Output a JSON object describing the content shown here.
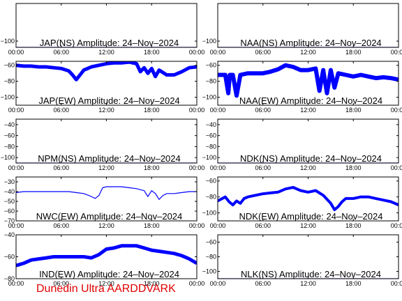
{
  "footer": "Dunedin Ultra AARDDVARK",
  "colors": {
    "trace": "#0000ff",
    "axes": "#000000",
    "footer": "#e00000"
  },
  "chart_data": [
    {
      "type": "line",
      "title": "JAP(NS) Amplitude: 24-Nov-2024",
      "yticks": [
        -100
      ],
      "ylim": [
        -110,
        -40
      ],
      "x_ticks": [
        "00:00",
        "06:00",
        "12:00",
        "18:00",
        "00:00"
      ],
      "series": [
        {
          "x": [
            0,
            1,
            2,
            3,
            4,
            5,
            6,
            7,
            8,
            9,
            10,
            11,
            12,
            13,
            14,
            15,
            16,
            17,
            18,
            19,
            20,
            21,
            22,
            23,
            24
          ],
          "values": [
            -110,
            -110,
            -110,
            -110,
            -110,
            -110,
            -110,
            -110,
            -110,
            -110,
            -110,
            -110,
            -110,
            -110,
            -110,
            -110,
            -110,
            -110,
            -110,
            -110,
            -110,
            -110,
            -110,
            -110,
            -110
          ]
        }
      ]
    },
    {
      "type": "line",
      "title": "NAA(NS) Amplitude: 24-Nov-2024",
      "yticks": [
        -100
      ],
      "ylim": [
        -110,
        -40
      ],
      "x_ticks": [
        "00:00",
        "06:00",
        "12:00",
        "18:00",
        "00:00"
      ],
      "series": [
        {
          "x": [
            0,
            1,
            2,
            3,
            4,
            5,
            6,
            7,
            8,
            9,
            10,
            11,
            12,
            13,
            14,
            15,
            16,
            17,
            18,
            19,
            20,
            21,
            22,
            23,
            24
          ],
          "values": [
            -110,
            -110,
            -110,
            -110,
            -110,
            -110,
            -110,
            -110,
            -110,
            -110,
            -110,
            -110,
            -110,
            -110,
            -110,
            -110,
            -110,
            -110,
            -110,
            -110,
            -110,
            -110,
            -110,
            -110,
            -110
          ]
        }
      ]
    },
    {
      "type": "line",
      "title": "JAP(EW) Amplitude: 24-Nov-2024",
      "yticks": [
        -60,
        -80,
        -100
      ],
      "ylim": [
        -110,
        -55
      ],
      "x_ticks": [
        "00:00",
        "06:00",
        "12:00",
        "18:00",
        "00:00"
      ],
      "band": 5,
      "series": [
        {
          "x": [
            0,
            1,
            2,
            3,
            4,
            5,
            6,
            7,
            7.5,
            8,
            8.5,
            9,
            10,
            11,
            12,
            13,
            14,
            15,
            16,
            16.5,
            17,
            17.5,
            18,
            18.5,
            19,
            20,
            21,
            22,
            23,
            24
          ],
          "values": [
            -60,
            -61,
            -61,
            -62,
            -62,
            -63,
            -64,
            -67,
            -72,
            -78,
            -72,
            -66,
            -62,
            -60,
            -58,
            -57,
            -57,
            -56,
            -58,
            -68,
            -63,
            -70,
            -64,
            -74,
            -66,
            -72,
            -72,
            -68,
            -63,
            -62
          ]
        }
      ]
    },
    {
      "type": "line",
      "title": "NAA(EW) Amplitude: 24-Nov-2024",
      "yticks": [
        -60,
        -80,
        -100
      ],
      "ylim": [
        -110,
        -55
      ],
      "x_ticks": [
        "00:00",
        "06:00",
        "12:00",
        "18:00",
        "00:00"
      ],
      "band": 6,
      "series": [
        {
          "x": [
            0,
            1,
            1.4,
            1.6,
            2,
            2.5,
            3,
            4,
            5,
            6,
            7,
            8,
            9,
            10,
            10.5,
            11,
            12,
            13,
            13.5,
            14,
            14.5,
            15,
            15.5,
            16,
            17,
            18,
            19,
            20,
            21,
            22,
            23,
            24
          ],
          "values": [
            -72,
            -72,
            -95,
            -72,
            -72,
            -98,
            -72,
            -70,
            -70,
            -70,
            -68,
            -65,
            -60,
            -62,
            -64,
            -66,
            -66,
            -64,
            -92,
            -66,
            -95,
            -66,
            -88,
            -70,
            -72,
            -74,
            -72,
            -74,
            -76,
            -75,
            -76,
            -78
          ]
        }
      ]
    },
    {
      "type": "line",
      "title": "NPM(NS) Amplitude: 24-Nov-2024",
      "yticks": [
        -40,
        -60,
        -80,
        -100
      ],
      "ylim": [
        -110,
        -30
      ],
      "x_ticks": [
        "00:00",
        "06:00",
        "12:00",
        "18:00",
        "00:00"
      ],
      "series": [
        {
          "x": [
            0,
            1,
            2,
            3,
            4,
            5,
            6,
            7,
            8,
            9,
            10,
            11,
            12,
            13,
            14,
            15,
            16,
            17,
            18,
            19,
            20,
            21,
            22,
            23,
            24
          ],
          "values": [
            -110,
            -110,
            -110,
            -110,
            -110,
            -110,
            -110,
            -110,
            -110,
            -110,
            -110,
            -110,
            -110,
            -110,
            -110,
            -110,
            -110,
            -110,
            -110,
            -110,
            -110,
            -110,
            -110,
            -110,
            -110
          ]
        }
      ]
    },
    {
      "type": "line",
      "title": "NDK(NS) Amplitude: 24-Nov-2024",
      "yticks": [
        -40,
        -60,
        -80,
        -100
      ],
      "ylim": [
        -110,
        -30
      ],
      "x_ticks": [
        "00:00",
        "06:00",
        "12:00",
        "18:00",
        "00:00"
      ],
      "series": [
        {
          "x": [
            0,
            1,
            2,
            3,
            4,
            5,
            6,
            7,
            8,
            9,
            10,
            11,
            12,
            13,
            14,
            15,
            16,
            17,
            18,
            19,
            20,
            21,
            22,
            23,
            24
          ],
          "values": [
            -110,
            -110,
            -110,
            -110,
            -110,
            -110,
            -110,
            -110,
            -110,
            -110,
            -110,
            -110,
            -110,
            -110,
            -110,
            -110,
            -110,
            -110,
            -110,
            -110,
            -110,
            -110,
            -110,
            -110,
            -110
          ]
        }
      ]
    },
    {
      "type": "line",
      "title": "NWC(EW) Amplitude: 24-Nov-2024",
      "yticks": [
        -30,
        -40,
        -50,
        -60,
        -70
      ],
      "ylim": [
        -70,
        -25
      ],
      "x_ticks": [
        "00:00",
        "06:00",
        "12:00",
        "18:00",
        "00:00"
      ],
      "series": [
        {
          "x": [
            0,
            1,
            2,
            3,
            4,
            5,
            6,
            7,
            8,
            9,
            10,
            10.5,
            11,
            11.5,
            12,
            13,
            14,
            15,
            16,
            17,
            17.5,
            18,
            18.5,
            19,
            19.5,
            20,
            21,
            22,
            23,
            24
          ],
          "values": [
            -41,
            -40,
            -40,
            -40,
            -40,
            -40,
            -40,
            -40,
            -41,
            -42,
            -45,
            -47,
            -44,
            -36,
            -35,
            -35,
            -35,
            -36,
            -37,
            -39,
            -45,
            -39,
            -42,
            -48,
            -44,
            -42,
            -42,
            -41,
            -40,
            -40
          ]
        }
      ]
    },
    {
      "type": "line",
      "title": "NDK(EW) Amplitude: 24-Nov-2024",
      "yticks": [
        -60,
        -80,
        -100
      ],
      "ylim": [
        -110,
        -55
      ],
      "x_ticks": [
        "00:00",
        "06:00",
        "12:00",
        "18:00",
        "00:00"
      ],
      "band": 4,
      "series": [
        {
          "x": [
            0,
            1,
            1.5,
            2,
            2.5,
            3,
            3.5,
            4,
            5,
            6,
            7,
            8,
            9,
            10,
            11,
            12,
            13,
            14,
            15,
            15.5,
            16,
            16.5,
            17,
            18,
            19,
            20,
            21,
            22,
            23,
            24
          ],
          "values": [
            -85,
            -80,
            -86,
            -90,
            -85,
            -88,
            -82,
            -80,
            -78,
            -76,
            -75,
            -74,
            -70,
            -68,
            -72,
            -74,
            -72,
            -78,
            -88,
            -96,
            -92,
            -86,
            -82,
            -82,
            -80,
            -80,
            -82,
            -84,
            -86,
            -90
          ]
        }
      ]
    },
    {
      "type": "line",
      "title": "IND(EW) Amplitude: 24-Nov-2024",
      "yticks": [
        -40,
        -60,
        -80
      ],
      "ylim": [
        -80,
        -40
      ],
      "x_ticks": [
        "00:00",
        "06:00",
        "12:00",
        "18:00",
        "00:00"
      ],
      "band": 5,
      "series": [
        {
          "x": [
            0,
            1,
            2,
            3,
            4,
            5,
            6,
            7,
            8,
            9,
            10,
            11,
            12,
            13,
            14,
            15,
            16,
            17,
            18,
            19,
            20,
            21,
            22,
            23,
            24
          ],
          "values": [
            -68,
            -66,
            -63,
            -62,
            -61,
            -60,
            -60,
            -60,
            -60,
            -60,
            -61,
            -58,
            -53,
            -52,
            -50,
            -50,
            -50,
            -52,
            -54,
            -55,
            -56,
            -57,
            -59,
            -62,
            -66
          ]
        }
      ]
    },
    {
      "type": "line",
      "title": "NLK(NS) Amplitude: 24-Nov-2024",
      "yticks": [
        -60,
        -80,
        -100
      ],
      "ylim": [
        -110,
        -50
      ],
      "x_ticks": [
        "00:00",
        "06:00",
        "12:00",
        "18:00",
        "00:00"
      ],
      "series": [
        {
          "x": [
            0,
            1,
            2,
            3,
            4,
            5,
            6,
            7,
            8,
            9,
            10,
            11,
            12,
            13,
            14,
            15,
            16,
            17,
            18,
            19,
            20,
            21,
            22,
            23,
            24
          ],
          "values": [
            -110,
            -110,
            -110,
            -110,
            -110,
            -110,
            -110,
            -110,
            -110,
            -110,
            -110,
            -110,
            -110,
            -110,
            -110,
            -110,
            -110,
            -110,
            -110,
            -110,
            -110,
            -110,
            -110,
            -110,
            -110
          ]
        }
      ]
    }
  ]
}
